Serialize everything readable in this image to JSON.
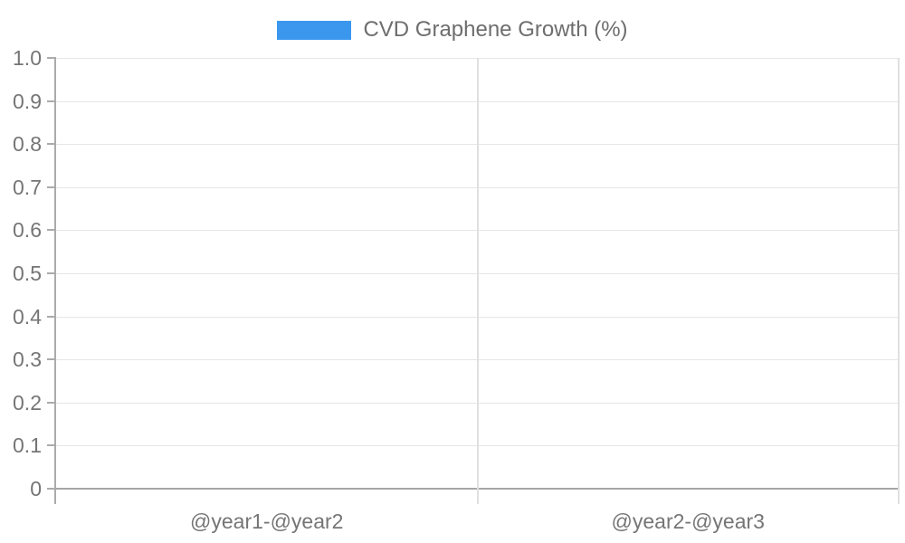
{
  "chart_data": {
    "type": "bar",
    "title": "",
    "legend": "CVD Graphene Growth (%)",
    "legend_position": "top-center",
    "categories": [
      "@year1-@year2",
      "@year2-@year3"
    ],
    "series": [
      {
        "name": "CVD Graphene Growth (%)",
        "color": "#3b97ee",
        "values": [
          null,
          null
        ]
      }
    ],
    "ylim": [
      0,
      1
    ],
    "ytick_step": 0.1,
    "ytick_labels": [
      "0",
      "0.1",
      "0.2",
      "0.3",
      "0.4",
      "0.5",
      "0.6",
      "0.7",
      "0.8",
      "0.9",
      "1.0"
    ],
    "grid": true,
    "bars_rendered": false
  },
  "colors": {
    "series_blue": "#3b97ee",
    "axis_line": "#ababab",
    "baseline": "#a6a6a6",
    "gridline": "#e6e6e6",
    "boundary_line": "#e0e0e0",
    "axis_label_text": "#757575",
    "legend_text": "#6e6e6e",
    "background": "#ffffff"
  }
}
